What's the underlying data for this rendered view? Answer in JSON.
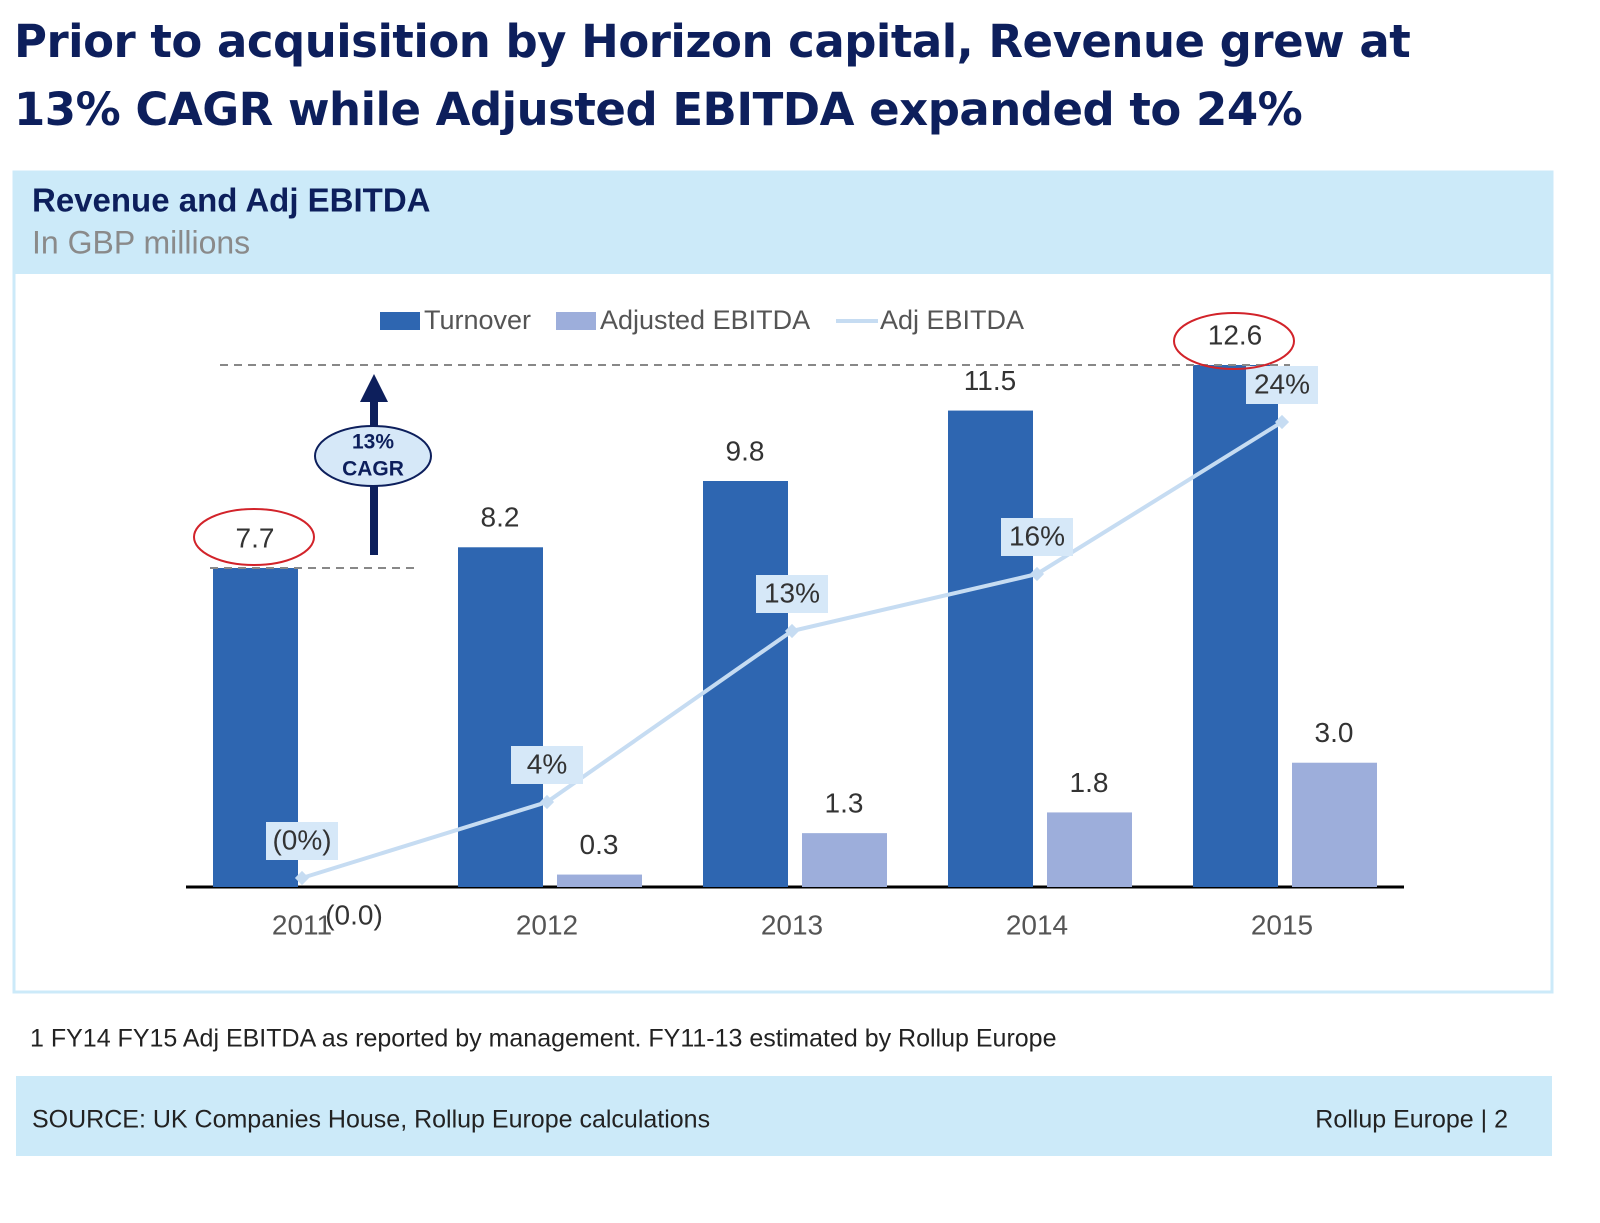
{
  "title": "Prior to acquisition by Horizon capital, Revenue grew at 13% CAGR while Adjusted EBITDA expanded to 24%",
  "chart_data": {
    "type": "bar",
    "title": "Revenue and Adj EBITDA",
    "subtitle": "In GBP millions",
    "categories": [
      "2011",
      "2012",
      "2013",
      "2014",
      "2015"
    ],
    "series": [
      {
        "name": "Turnover",
        "color": "#2e66b1",
        "values": [
          7.7,
          8.2,
          9.8,
          11.5,
          12.6
        ]
      },
      {
        "name": "Adjusted EBITDA",
        "color": "#9daedb",
        "values": [
          0,
          0.3,
          1.3,
          1.8,
          3.0
        ],
        "value_labels": [
          "(0.0)",
          "0.3",
          "1.3",
          "1.8",
          "3.0"
        ]
      },
      {
        "name": "Adj EBITDA",
        "type": "line",
        "axis": "y2",
        "color": "#c6dcf2",
        "values": [
          0,
          4,
          13,
          16,
          24
        ],
        "value_labels": [
          "(0%)",
          "4%",
          "13%",
          "16%",
          "24%"
        ]
      }
    ],
    "annotation": [
      "13%",
      "CAGR"
    ],
    "legend": "top"
  },
  "footnote": "1 FY14 FY15 Adj EBITDA as reported by management. FY11-13 estimated by Rollup Europe",
  "footer": {
    "source": "SOURCE: UK Companies House, Rollup Europe calculations",
    "page": "Rollup Europe | 2"
  }
}
